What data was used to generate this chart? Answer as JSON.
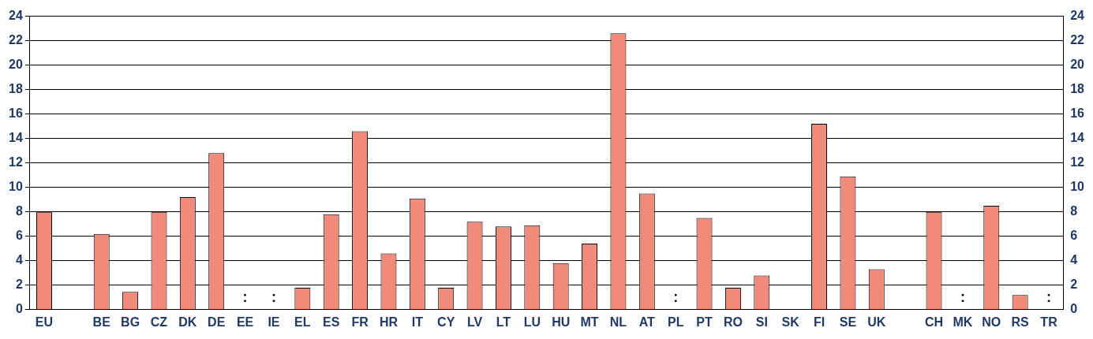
{
  "chart_data": {
    "type": "bar",
    "categories": [
      "EU",
      null,
      "BE",
      "BG",
      "CZ",
      "DK",
      "DE",
      "EE",
      "IE",
      "EL",
      "ES",
      "FR",
      "HR",
      "IT",
      "CY",
      "LV",
      "LT",
      "LU",
      "HU",
      "MT",
      "NL",
      "AT",
      "PL",
      "PT",
      "RO",
      "SI",
      "SK",
      "FI",
      "SE",
      "UK",
      null,
      "CH",
      "MK",
      "NO",
      "RS",
      "TR"
    ],
    "values": [
      8.0,
      null,
      6.2,
      1.45,
      8.0,
      9.2,
      12.8,
      null,
      null,
      1.8,
      7.8,
      14.6,
      4.6,
      9.1,
      1.8,
      7.2,
      6.8,
      6.9,
      3.8,
      5.4,
      22.6,
      9.5,
      null,
      7.5,
      1.8,
      2.8,
      null,
      15.2,
      10.9,
      3.3,
      null,
      8.0,
      null,
      8.5,
      1.2,
      null
    ],
    "value_labels": [
      null,
      null,
      null,
      null,
      null,
      null,
      null,
      ":",
      ":",
      null,
      null,
      null,
      null,
      null,
      null,
      null,
      null,
      null,
      null,
      null,
      null,
      null,
      ":",
      null,
      null,
      null,
      null,
      null,
      null,
      null,
      null,
      null,
      ":",
      null,
      null,
      ":"
    ],
    "color": "#f08a7a",
    "ylim": [
      0,
      24
    ],
    "yticks": [
      0,
      2,
      4,
      6,
      8,
      10,
      12,
      14,
      16,
      18,
      20,
      22,
      24
    ],
    "y2lim": [
      0,
      24
    ],
    "y2ticks": [
      0,
      2,
      4,
      6,
      8,
      10,
      12,
      14,
      16,
      18,
      20,
      22,
      24
    ],
    "grid": "y",
    "legend": false
  }
}
